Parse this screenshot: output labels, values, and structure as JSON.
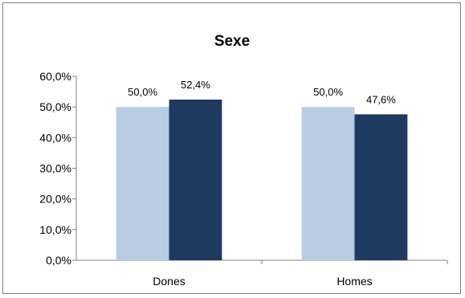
{
  "chart_data": {
    "type": "bar",
    "title": "Sexe",
    "categories": [
      "Dones",
      "Homes"
    ],
    "series": [
      {
        "values": [
          50.0,
          50.0
        ],
        "labels": [
          "50,0%",
          "50,0%"
        ],
        "color": "#b8cce4"
      },
      {
        "values": [
          52.4,
          47.6
        ],
        "labels": [
          "52,4%",
          "47,6%"
        ],
        "color": "#1f3a60"
      }
    ],
    "ylim": [
      0,
      60
    ],
    "yticks": [
      "0,0%",
      "10,0%",
      "20,0%",
      "30,0%",
      "40,0%",
      "50,0%",
      "60,0%"
    ],
    "grid": false,
    "legend": "none"
  }
}
